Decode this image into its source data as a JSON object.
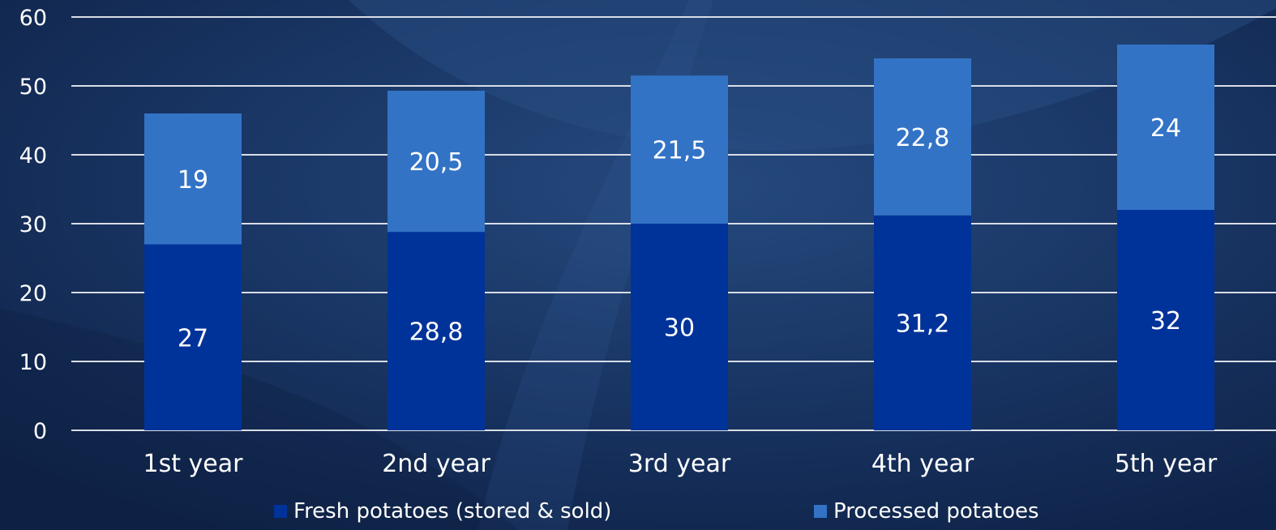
{
  "chart_data": {
    "type": "bar",
    "stacked": true,
    "categories": [
      "1st year",
      "2nd year",
      "3rd year",
      "4th year",
      "5th year"
    ],
    "series": [
      {
        "name": "Fresh potatoes (stored & sold)",
        "color": "#003399",
        "values": [
          27,
          28.8,
          30,
          31.2,
          32
        ],
        "labels": [
          "27",
          "28,8",
          "30",
          "31,2",
          "32"
        ]
      },
      {
        "name": "Processed potatoes",
        "color": "#3373c6",
        "values": [
          19,
          20.5,
          21.5,
          22.8,
          24
        ],
        "labels": [
          "19",
          "20,5",
          "21,5",
          "22,8",
          "24"
        ]
      }
    ],
    "ylim": [
      0,
      60
    ],
    "yticks": [
      "0",
      "10",
      "20",
      "30",
      "40",
      "50",
      "60"
    ],
    "grid": true,
    "legend_position": "bottom",
    "title": "",
    "xlabel": "",
    "ylabel": ""
  },
  "colors": {
    "background": "#132a55",
    "gridline": "#d9dde6",
    "text": "#ffffff"
  }
}
